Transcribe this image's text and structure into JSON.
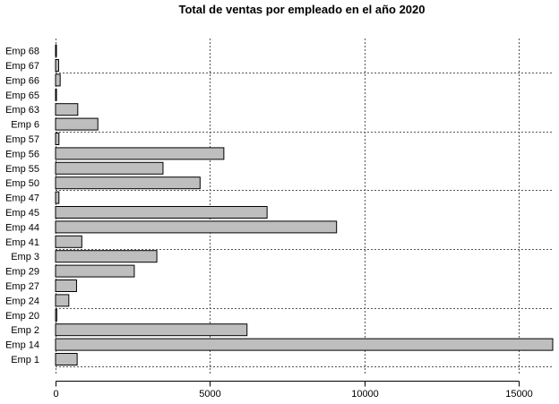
{
  "chart_data": {
    "type": "bar",
    "orientation": "horizontal",
    "title": "Total de ventas por empleado en el año 2020",
    "xlabel": "",
    "ylabel": "",
    "xlim": [
      0,
      16100
    ],
    "x_ticks": [
      0,
      5000,
      10000,
      15000
    ],
    "grid": true,
    "bar_color": "#bebebe",
    "categories": [
      "Emp 1",
      "Emp 14",
      "Emp 2",
      "Emp 20",
      "Emp 24",
      "Emp 27",
      "Emp 29",
      "Emp 3",
      "Emp 41",
      "Emp 44",
      "Emp 45",
      "Emp 47",
      "Emp 50",
      "Emp 55",
      "Emp 56",
      "Emp 57",
      "Emp 6",
      "Emp 63",
      "Emp 65",
      "Emp 66",
      "Emp 67",
      "Emp 68"
    ],
    "values": [
      700,
      16100,
      6200,
      40,
      430,
      680,
      2550,
      3280,
      850,
      9100,
      6850,
      110,
      4680,
      3480,
      5450,
      110,
      1370,
      720,
      30,
      150,
      100,
      20
    ]
  }
}
